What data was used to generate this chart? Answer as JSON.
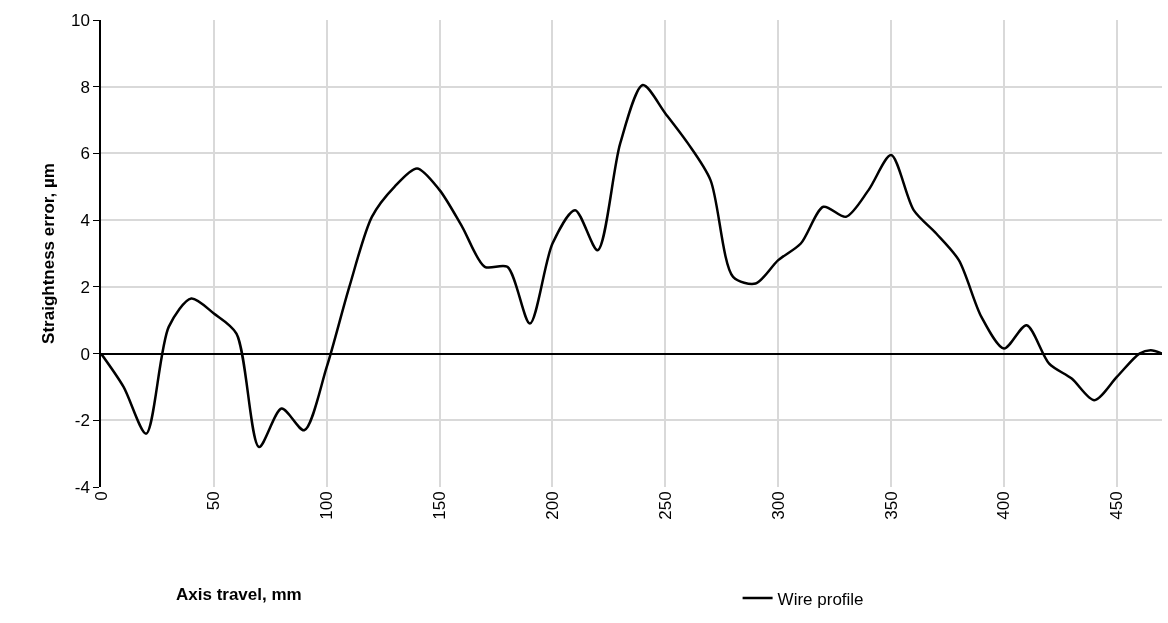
{
  "chart_data": {
    "type": "line",
    "xlabel": "Axis travel, mm",
    "ylabel": "Straightness error, µm",
    "x": [
      0,
      10,
      20,
      30,
      40,
      50,
      60,
      70,
      80,
      90,
      100,
      110,
      120,
      130,
      140,
      150,
      160,
      170,
      180,
      190,
      200,
      210,
      220,
      230,
      240,
      250,
      260,
      270,
      280,
      290,
      300,
      310,
      320,
      330,
      340,
      350,
      360,
      370,
      380,
      390,
      400,
      410,
      420,
      430,
      440,
      450,
      460,
      465,
      470
    ],
    "series": [
      {
        "name": "Wire profile",
        "color": "#000000",
        "values": [
          0,
          -1.0,
          -2.4,
          0.8,
          1.65,
          1.2,
          0.6,
          -2.8,
          -1.65,
          -2.3,
          -0.4,
          2.0,
          4.1,
          5.0,
          5.55,
          4.9,
          3.8,
          2.6,
          2.6,
          0.9,
          3.3,
          4.3,
          3.1,
          6.3,
          8.05,
          7.2,
          6.3,
          5.2,
          2.3,
          2.1,
          2.8,
          3.3,
          4.4,
          4.1,
          4.9,
          5.95,
          4.3,
          3.6,
          2.8,
          1.1,
          0.15,
          0.85,
          -0.3,
          -0.75,
          -1.4,
          -0.7,
          0,
          0.1,
          0
        ]
      }
    ],
    "xlim": [
      0,
      470
    ],
    "xticks": [
      0,
      50,
      100,
      150,
      200,
      250,
      300,
      350,
      400,
      450
    ],
    "ylim": [
      -4,
      10
    ],
    "yticks": [
      -4,
      -2,
      0,
      2,
      4,
      6,
      8,
      10
    ],
    "grid": true,
    "legend": "bottom",
    "marker": "none",
    "line_style": "solid"
  }
}
